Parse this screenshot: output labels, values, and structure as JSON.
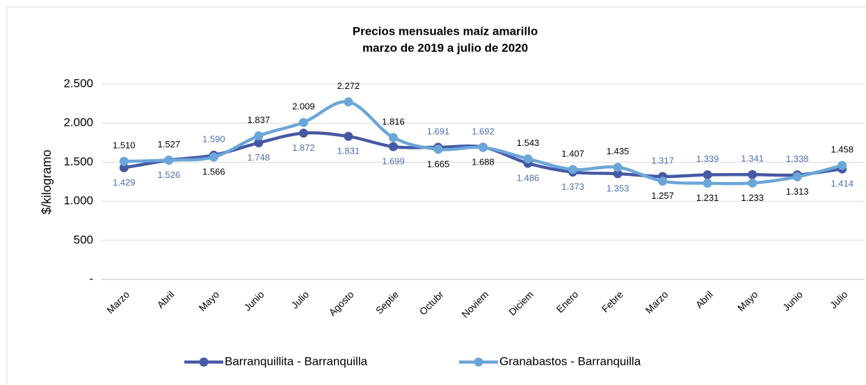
{
  "chart_data": {
    "type": "line",
    "title": "Precios mensuales maíz amarillo",
    "subtitle": "marzo de 2019 a julio de 2020",
    "y_label": "$/kilogramo",
    "categories": [
      "Marzo",
      "Abril",
      "Mayo",
      "Junio",
      "Julio",
      "Agosto",
      "Septie",
      "Octubr",
      "Noviem",
      "Diciem",
      "Enero",
      "Febre",
      "Marzo",
      "Abril",
      "Mayo",
      "Junio",
      "Julio"
    ],
    "series": [
      {
        "name": "Barranquillita - Barranquilla",
        "color": "#4659a5",
        "label_color": "#4e6fb3",
        "values": [
          1429,
          1526,
          1590,
          1748,
          1872,
          1831,
          1699,
          1691,
          1692,
          1486,
          1373,
          1353,
          1317,
          1339,
          1341,
          1338,
          1414
        ],
        "value_labels": [
          "1.429",
          "1.526",
          "1.590",
          "1.748",
          "1.872",
          "1.831",
          "1.699",
          "1.691",
          "1.692",
          "1.486",
          "1.373",
          "1.353",
          "1.317",
          "1.339",
          "1.341",
          "1.338",
          "1.414"
        ]
      },
      {
        "name": "Granabastos - Barranquilla",
        "color": "#6aa6d8",
        "label_color": "#000000",
        "values": [
          1510,
          1527,
          1566,
          1837,
          2009,
          2272,
          1816,
          1665,
          1688,
          1543,
          1407,
          1435,
          1257,
          1231,
          1233,
          1313,
          1458
        ],
        "value_labels": [
          "1.510",
          "1.527",
          "1.566",
          "1.837",
          "2.009",
          "2.272",
          "1.816",
          "1.665",
          "1.688",
          "1.543",
          "1.407",
          "1.435",
          "1.257",
          "1.231",
          "1.233",
          "1.313",
          "1.458"
        ]
      }
    ],
    "ylim": [
      0,
      2500
    ],
    "yticks": [
      {
        "value": 0,
        "label": "-"
      },
      500,
      {
        "value": 1000,
        "label": "1.000"
      },
      {
        "value": 1500,
        "label": "1.500"
      },
      {
        "value": 2000,
        "label": "2.000"
      },
      {
        "value": 2500,
        "label": "2.500"
      }
    ],
    "grid": true,
    "legend": "bottom"
  }
}
